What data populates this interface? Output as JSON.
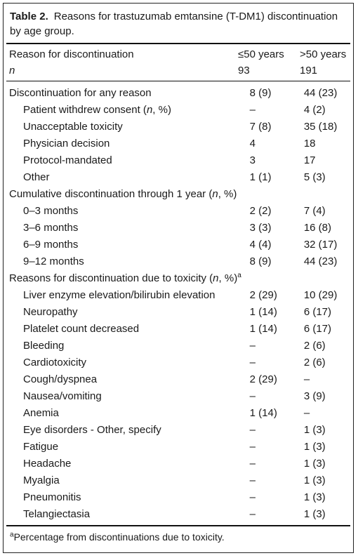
{
  "caption": {
    "label": "Table 2.",
    "text": "Reasons for trastuzumab emtansine (T-DM1) discontinuation by age group."
  },
  "header": {
    "col1": "Reason for discontinuation",
    "col2": "≤50 years",
    "col3": ">50 years",
    "n_label": "n",
    "n_col2": "93",
    "n_col3": "191"
  },
  "rows": [
    {
      "label": "Discontinuation for any reason",
      "v1": "8 (9)",
      "v2": "44 (23)",
      "level": 0
    },
    {
      "label": "Patient withdrew consent",
      "suffix_pre": " (",
      "suffix_it": "n",
      "suffix_post": ", %)",
      "v1": "–",
      "v2": "4 (2)",
      "level": 1
    },
    {
      "label": "Unacceptable toxicity",
      "v1": "7 (8)",
      "v2": "35 (18)",
      "level": 1
    },
    {
      "label": "Physician decision",
      "v1": "4",
      "v2": "18",
      "level": 1
    },
    {
      "label": "Protocol-mandated",
      "v1": "3",
      "v2": "17",
      "level": 1
    },
    {
      "label": "Other",
      "v1": "1 (1)",
      "v2": "5 (3)",
      "level": 1
    },
    {
      "label": "Cumulative discontinuation through 1 year",
      "suffix_pre": " (",
      "suffix_it": "n",
      "suffix_post": ", %)",
      "v1": "",
      "v2": "",
      "level": 0
    },
    {
      "label": "0–3 months",
      "v1": "2 (2)",
      "v2": "7 (4)",
      "level": 1
    },
    {
      "label": "3–6 months",
      "v1": "3 (3)",
      "v2": "16 (8)",
      "level": 1
    },
    {
      "label": "6–9 months",
      "v1": "4 (4)",
      "v2": "32 (17)",
      "level": 1
    },
    {
      "label": "9–12 months",
      "v1": "8 (9)",
      "v2": "44 (23)",
      "level": 1
    },
    {
      "label": "Reasons for discontinuation due to toxicity",
      "suffix_pre": " (",
      "suffix_it": "n",
      "suffix_post": ", %)",
      "sup": "a",
      "v1": "",
      "v2": "",
      "level": 0
    },
    {
      "label": "Liver enzyme elevation/bilirubin elevation",
      "v1": "2 (29)",
      "v2": "10 (29)",
      "level": 1
    },
    {
      "label": "Neuropathy",
      "v1": "1 (14)",
      "v2": "6 (17)",
      "level": 1
    },
    {
      "label": "Platelet count decreased",
      "v1": "1 (14)",
      "v2": "6 (17)",
      "level": 1
    },
    {
      "label": "Bleeding",
      "v1": "–",
      "v2": "2 (6)",
      "level": 1
    },
    {
      "label": "Cardiotoxicity",
      "v1": "–",
      "v2": "2 (6)",
      "level": 1
    },
    {
      "label": "Cough/dyspnea",
      "v1": "2 (29)",
      "v2": "–",
      "level": 1
    },
    {
      "label": "Nausea/vomiting",
      "v1": "–",
      "v2": "3 (9)",
      "level": 1
    },
    {
      "label": "Anemia",
      "v1": "1 (14)",
      "v2": "–",
      "level": 1
    },
    {
      "label": "Eye disorders - Other, specify",
      "v1": "–",
      "v2": "1 (3)",
      "level": 1
    },
    {
      "label": "Fatigue",
      "v1": "–",
      "v2": "1 (3)",
      "level": 1
    },
    {
      "label": "Headache",
      "v1": "–",
      "v2": "1 (3)",
      "level": 1
    },
    {
      "label": "Myalgia",
      "v1": "–",
      "v2": "1 (3)",
      "level": 1
    },
    {
      "label": "Pneumonitis",
      "v1": "–",
      "v2": "1 (3)",
      "level": 1
    },
    {
      "label": "Telangiectasia",
      "v1": "–",
      "v2": "1 (3)",
      "level": 1
    }
  ],
  "footnote": {
    "sup": "a",
    "text": "Percentage from discontinuations due to toxicity."
  }
}
